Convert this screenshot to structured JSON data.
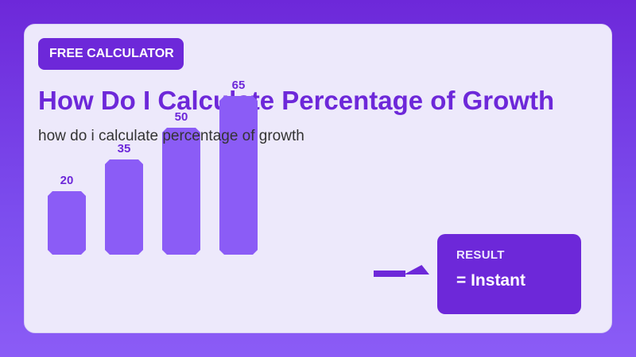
{
  "badge": {
    "label": "FREE CALCULATOR"
  },
  "header": {
    "title": "How Do I Calculate Percentage of Growth",
    "subtitle": "how do i calculate percentage of growth"
  },
  "chart_data": {
    "type": "bar",
    "categories": [
      "",
      "",
      "",
      ""
    ],
    "values": [
      20,
      35,
      50,
      65
    ],
    "title": "",
    "xlabel": "",
    "ylabel": ""
  },
  "result": {
    "label": "RESULT",
    "value": "= Instant"
  },
  "colors": {
    "accent": "#6d28d9",
    "bar": "#8b5cf6",
    "card": "#ede9fb"
  }
}
